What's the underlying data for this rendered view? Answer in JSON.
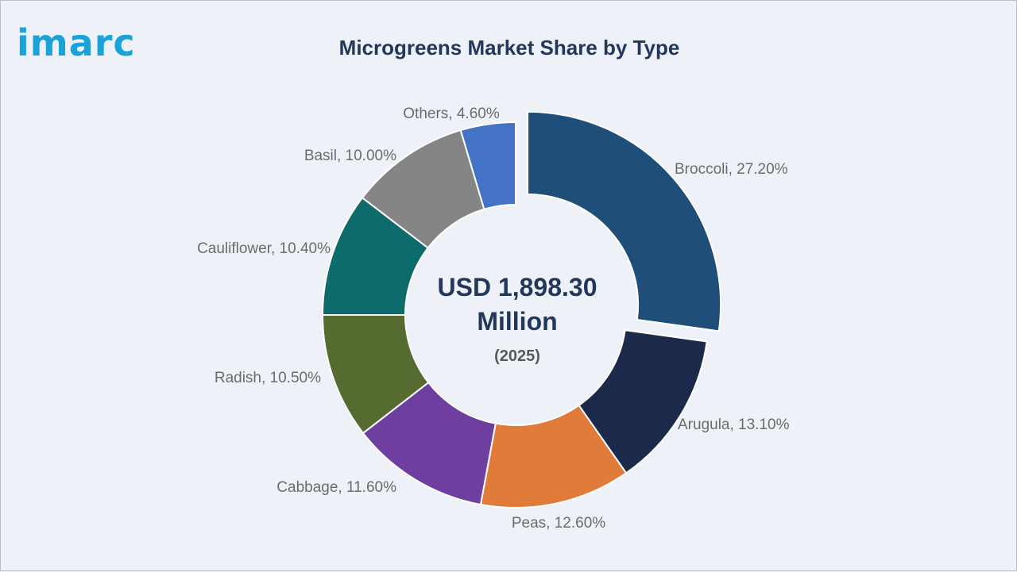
{
  "brand": {
    "logo_text": "imarc",
    "color": "#1aa3d9"
  },
  "chart_data": {
    "type": "pie",
    "title": "Microgreens Market Share by Type",
    "center": {
      "line1": "USD 1,898.30",
      "line2": "Million",
      "line3": "(2025)"
    },
    "slices": [
      {
        "name": "Broccoli",
        "value": 27.2,
        "label": "Broccoli, 27.20%",
        "color": "#1f4e79",
        "exploded": true
      },
      {
        "name": "Arugula",
        "value": 13.1,
        "label": "Arugula, 13.10%",
        "color": "#1b2a4a"
      },
      {
        "name": "Peas",
        "value": 12.6,
        "label": "Peas, 12.60%",
        "color": "#e07b39"
      },
      {
        "name": "Cabbage",
        "value": 11.6,
        "label": "Cabbage, 11.60%",
        "color": "#6f3fa0"
      },
      {
        "name": "Radish",
        "value": 10.5,
        "label": "Radish, 10.50%",
        "color": "#556b2f"
      },
      {
        "name": "Cauliflower",
        "value": 10.4,
        "label": "Cauliflower, 10.40%",
        "color": "#0e6b6b"
      },
      {
        "name": "Basil",
        "value": 10.0,
        "label": "Basil, 10.00%",
        "color": "#858585"
      },
      {
        "name": "Others",
        "value": 4.6,
        "label": "Others, 4.60%",
        "color": "#4472c4"
      }
    ]
  }
}
